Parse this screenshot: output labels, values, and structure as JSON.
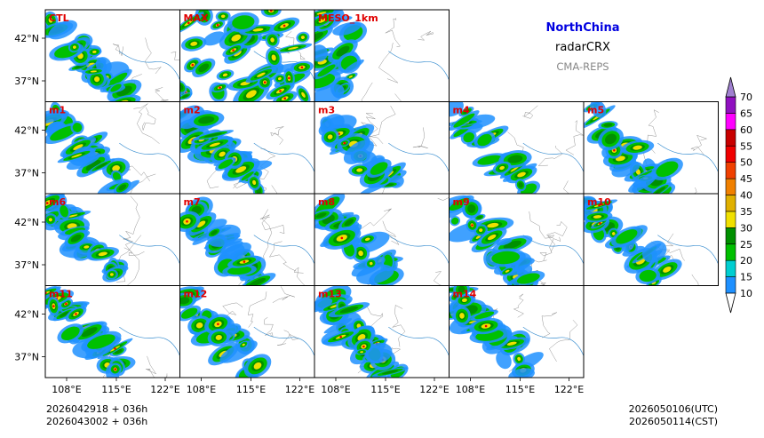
{
  "chart_data": {
    "type": "heatmap",
    "title": "NorthChina",
    "subtitle": "radarCRX",
    "source": "CMA-REPS",
    "panels": [
      "CTL",
      "MAX",
      "MESO_1km",
      "m1",
      "m2",
      "m3",
      "m4",
      "m5",
      "m6",
      "m7",
      "m8",
      "m9",
      "m10",
      "m11",
      "m12",
      "m13",
      "m14"
    ],
    "y_ticks": [
      "42°N",
      "37°N"
    ],
    "x_ticks": [
      "108°E",
      "115°E",
      "122°E"
    ],
    "colorbar": {
      "levels": [
        10,
        15,
        20,
        25,
        30,
        35,
        40,
        45,
        50,
        55,
        60,
        65,
        70
      ],
      "labels": [
        "10",
        "15",
        "20",
        "25",
        "30",
        "35",
        "40",
        "45",
        "50",
        "55",
        "60",
        "65",
        "70"
      ],
      "colors": [
        "#1e90ff",
        "#00ced1",
        "#00c000",
        "#009000",
        "#f0e000",
        "#e0b000",
        "#f08000",
        "#f04000",
        "#f00000",
        "#c80000",
        "#ff00ff",
        "#9010c0",
        "#a080d0"
      ]
    },
    "init_lines": [
      "2026042918  +  036h",
      "2026043002  +  036h"
    ],
    "valid_lines": [
      "2026050106(UTC)",
      "2026050114(CST)"
    ],
    "intensity": [
      0.55,
      1.0,
      0.45,
      0.5,
      0.7,
      0.75,
      0.35,
      0.6,
      0.55,
      0.6,
      0.6,
      0.55,
      0.7,
      0.75,
      0.6,
      0.7,
      0.7
    ]
  }
}
